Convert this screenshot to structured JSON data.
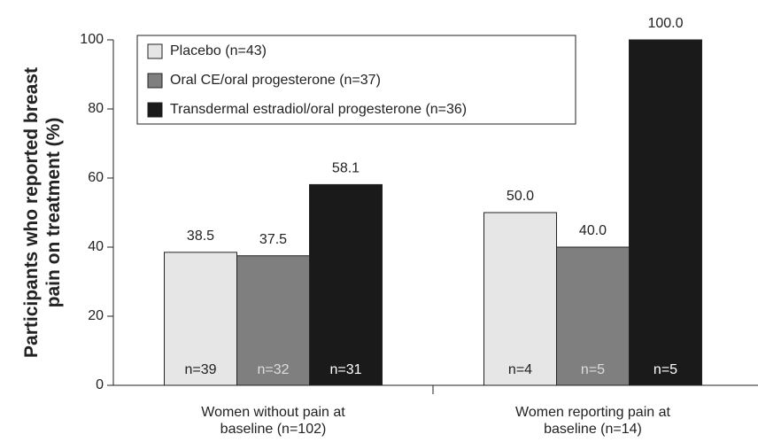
{
  "chart_data": {
    "type": "bar",
    "y_label": "Participants who reported breast pain on treatment (%)",
    "categories": [
      "Women without pain at baseline (n=102)",
      "Women reporting pain at baseline (n=14)"
    ],
    "series": [
      {
        "name": "Placebo (n=43)",
        "color": "#e6e6e6",
        "values": [
          38.5,
          50
        ],
        "value_labels": [
          "38.5",
          "50.0"
        ],
        "n_labels": [
          "n=39",
          "n=4"
        ],
        "n_label_color": "#222222"
      },
      {
        "name": "Oral CE/oral progesterone (n=37)",
        "color": "#7f7f7f",
        "values": [
          37.5,
          40
        ],
        "value_labels": [
          "37.5",
          "40.0"
        ],
        "n_labels": [
          "n=32",
          "n=5"
        ],
        "n_label_color": "#dddddd"
      },
      {
        "name": "Transdermal estradiol/oral progesterone (n=36)",
        "color": "#1a1a1a",
        "values": [
          58.1,
          100
        ],
        "value_labels": [
          "58.1",
          "100.0"
        ],
        "n_labels": [
          "n=31",
          "n=5"
        ],
        "n_label_color": "#ffffff"
      }
    ],
    "ylim": [
      0,
      100
    ],
    "yticks": [
      0,
      20,
      40,
      60,
      80,
      100
    ],
    "legend": "top-left"
  }
}
